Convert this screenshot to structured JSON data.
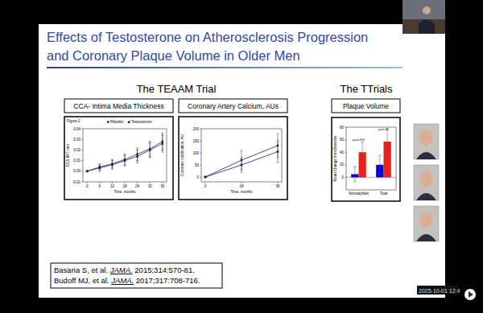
{
  "slide": {
    "title_lines": [
      "Effects of Testosterone on Atherosclerosis Progression",
      "and Coronary Plaque Volume in Older Men"
    ],
    "headers": [
      "The TEAAM Trial",
      "The TTrials"
    ],
    "references": [
      {
        "authors": "Basaria S, et al. ",
        "journal": "JAMA.",
        "details": " 2015;314:570-81."
      },
      {
        "authors": "Budoff MJ, et al. ",
        "journal": "JAMA.",
        "details": " 2017;317:708-716."
      }
    ],
    "timestamp": "2025-10-01 12:4"
  },
  "chart_data": [
    {
      "type": "line",
      "title": "CCA- Intima Media Thickness",
      "subtitle": "Figure 2",
      "x_label": "Time, months",
      "y_label": "CCA-IMT, mm",
      "x": [
        0,
        6,
        12,
        18,
        24,
        30,
        36
      ],
      "xlim": [
        -2,
        38
      ],
      "xticks": [
        0,
        6,
        12,
        18,
        24,
        30,
        36
      ],
      "ylim": [
        -0.01,
        0.04
      ],
      "yticks": [
        {
          "value": -0.01,
          "label": "-0.01"
        },
        {
          "value": 0,
          "label": "0.00"
        },
        {
          "value": 0.01,
          "label": "0.01"
        },
        {
          "value": 0.02,
          "label": "0.02"
        },
        {
          "value": 0.03,
          "label": "0.03"
        },
        {
          "value": 0.04,
          "label": "0.04"
        }
      ],
      "legend": "top",
      "series": [
        {
          "name": "Placebo",
          "color": "#1c2454",
          "marker": "circle",
          "values": [
            0,
            0.004,
            0.007,
            0.011,
            0.016,
            0.021,
            0.028
          ],
          "errors": [
            0,
            0.003,
            0.004,
            0.005,
            0.006,
            0.007,
            0.008
          ]
        },
        {
          "name": "Testosterone",
          "color": "#1c2454",
          "marker": "square",
          "values": [
            0,
            0.003,
            0.006,
            0.01,
            0.014,
            0.02,
            0.026
          ],
          "errors": [
            0,
            0.003,
            0.004,
            0.005,
            0.006,
            0.007,
            0.008
          ]
        }
      ]
    },
    {
      "type": "line",
      "title": "Coronary Artery Calcium, AUs",
      "x_label": "Time, months",
      "y_label": "Coronary calcification, AU",
      "x": [
        0,
        18,
        36
      ],
      "xlim": [
        -2,
        38
      ],
      "xticks": [
        0,
        18,
        36
      ],
      "ylim": [
        -20,
        200
      ],
      "yticks": [
        0,
        50,
        100,
        150,
        200
      ],
      "series": [
        {
          "color": "#1c2454",
          "marker": "circle",
          "values": [
            0,
            70,
            130
          ],
          "errors": [
            0,
            40,
            50
          ]
        },
        {
          "color": "#1c2454",
          "marker": "square",
          "values": [
            0,
            50,
            105
          ],
          "errors": [
            0,
            30,
            45
          ]
        }
      ]
    },
    {
      "type": "bar",
      "title": "Plaque Volume",
      "y_label": "Mean Change from Baseline",
      "categories": [
        "Noncalcified",
        "Total"
      ],
      "annotations": [
        "p=0.003",
        "p=0.02"
      ],
      "ylim": [
        -20,
        80
      ],
      "yticks": [
        0,
        20,
        40,
        60,
        80
      ],
      "series": [
        {
          "color": "#0000e0",
          "values": [
            5,
            20
          ],
          "errors": [
            12,
            15
          ]
        },
        {
          "color": "#e8221e",
          "values": [
            40,
            57
          ],
          "errors": [
            16,
            20
          ]
        }
      ]
    }
  ]
}
